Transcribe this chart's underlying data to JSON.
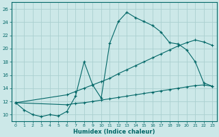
{
  "xlabel": "Humidex (Indice chaleur)",
  "bg_color": "#cce8e8",
  "grid_color": "#aacfcf",
  "line_color": "#006666",
  "xlim": [
    -0.5,
    23.5
  ],
  "ylim": [
    9.0,
    27.0
  ],
  "xticks": [
    0,
    1,
    2,
    3,
    4,
    5,
    6,
    7,
    8,
    9,
    10,
    11,
    12,
    13,
    14,
    15,
    16,
    17,
    18,
    19,
    20,
    21,
    22,
    23
  ],
  "yticks": [
    10,
    12,
    14,
    16,
    18,
    20,
    22,
    24,
    26
  ],
  "curve1_x": [
    0,
    1,
    2,
    3,
    4,
    5,
    6,
    7,
    8,
    9,
    10,
    11,
    12,
    13,
    14,
    15,
    16,
    17,
    18,
    19,
    20,
    21,
    22,
    23
  ],
  "curve1_y": [
    11.8,
    10.7,
    10.0,
    9.7,
    10.0,
    9.8,
    10.5,
    12.8,
    18.0,
    14.5,
    12.5,
    20.8,
    24.1,
    25.5,
    24.7,
    24.1,
    23.5,
    22.5,
    20.9,
    20.7,
    19.8,
    18.0,
    14.8,
    14.3
  ],
  "line2_x": [
    0,
    6,
    7,
    8,
    9,
    10,
    11,
    12,
    13,
    14,
    15,
    16,
    17,
    18,
    19,
    20,
    21,
    22,
    23
  ],
  "line2_y": [
    11.8,
    13.0,
    13.5,
    14.0,
    14.5,
    15.0,
    15.5,
    16.2,
    16.8,
    17.4,
    18.0,
    18.6,
    19.2,
    19.8,
    20.4,
    20.9,
    21.3,
    21.0,
    20.5
  ],
  "line3_x": [
    0,
    6,
    7,
    8,
    9,
    10,
    11,
    12,
    13,
    14,
    15,
    16,
    17,
    18,
    19,
    20,
    21,
    22,
    23
  ],
  "line3_y": [
    11.8,
    11.5,
    11.7,
    11.8,
    12.0,
    12.2,
    12.4,
    12.6,
    12.8,
    13.0,
    13.2,
    13.4,
    13.6,
    13.8,
    14.0,
    14.2,
    14.4,
    14.5,
    14.3
  ]
}
